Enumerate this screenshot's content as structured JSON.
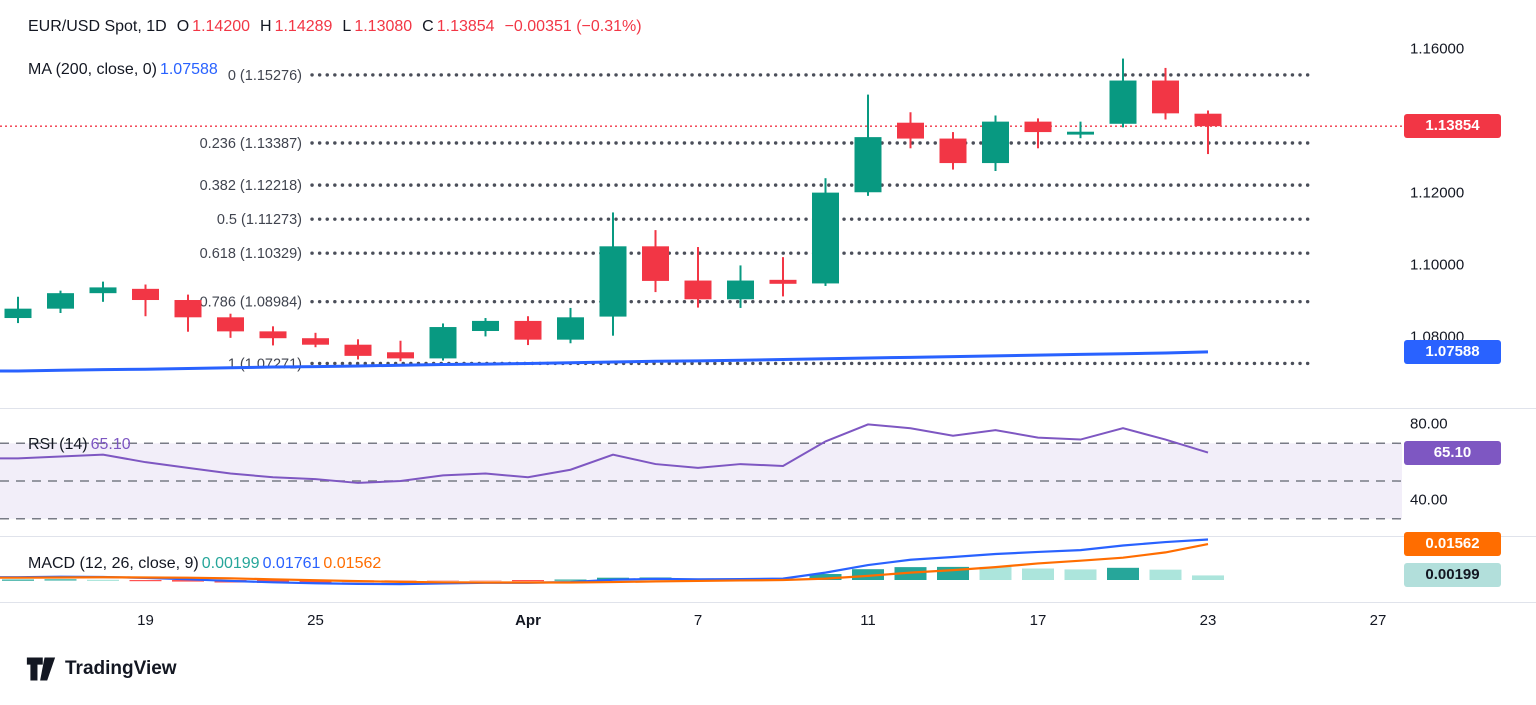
{
  "legend": {
    "title": "EUR/USD Spot, 1D",
    "ohlc": {
      "o_label": "O",
      "open": "1.14200",
      "h_label": "H",
      "high": "1.14289",
      "l_label": "L",
      "low": "1.13080",
      "c_label": "C",
      "close": "1.13854",
      "change": "−0.00351 (−0.31%)"
    },
    "ma_label": "MA (200, close, 0)",
    "ma_value": "1.07588"
  },
  "rsi_legend": {
    "label": "RSI (14)",
    "value": "65.10"
  },
  "macd_legend": {
    "label": "MACD (12, 26, close, 9)",
    "hist_value": "0.00199",
    "macd_value": "0.01761",
    "signal_value": "0.01562"
  },
  "price_axis": {
    "ticks": [
      {
        "label": "1.16000",
        "price": 1.16
      },
      {
        "label": "1.12000",
        "price": 1.12
      },
      {
        "label": "1.10000",
        "price": 1.1
      },
      {
        "label": "1.08000",
        "price": 1.08
      }
    ],
    "badges": [
      {
        "label": "1.13854",
        "price": 1.13854,
        "name": "last-price-badge",
        "color": "#F23645",
        "text": "#ffffff"
      },
      {
        "label": "1.07588",
        "price": 1.07588,
        "name": "ma-value-badge",
        "color": "#2962FF",
        "text": "#ffffff"
      }
    ]
  },
  "rsi_axis": {
    "ticks": [
      {
        "label": "80.00",
        "value": 80
      },
      {
        "label": "40.00",
        "value": 40
      }
    ],
    "badge": {
      "label": "65.10",
      "value": 65.1,
      "color": "#7E57C2",
      "text": "#ffffff"
    }
  },
  "macd_axis": {
    "badges": [
      {
        "label": "0.01562",
        "value": 0.01562,
        "name": "macd-signal-badge",
        "color": "#FF6D00",
        "text": "#ffffff"
      },
      {
        "label": "0.00199",
        "value": 0.00199,
        "name": "macd-hist-badge",
        "color": "#B2DFDB",
        "text": "#131722"
      }
    ]
  },
  "time_axis": {
    "ticks": [
      {
        "label": "19",
        "bar": 3
      },
      {
        "label": "25",
        "bar": 7
      },
      {
        "label": "Apr",
        "bar": 12,
        "bold": true
      },
      {
        "label": "7",
        "bar": 16
      },
      {
        "label": "11",
        "bar": 20
      },
      {
        "label": "17",
        "bar": 24
      },
      {
        "label": "23",
        "bar": 28
      },
      {
        "label": "27",
        "bar": 32
      }
    ]
  },
  "footer": {
    "brand": "TradingView"
  },
  "colors": {
    "up": "#089981",
    "down": "#F23645",
    "ma": "#2962FF",
    "fib": "#4A4E59",
    "fib_text": "#40444F",
    "last_price_line": "#F23645",
    "rsi": "#7E57C2",
    "rsi_band": "rgba(126,87,194,0.10)",
    "guide": "#787B86",
    "macd": "#2962FF",
    "signal": "#FF6D00",
    "hist_up": "#26A69A",
    "hist_up_light": "#ACE5DC",
    "hist_dn": "#FF5252",
    "hist_dn_light": "#FCCBCD",
    "separator": "#E0E3EB",
    "text": "#131722"
  },
  "chart_data": [
    {
      "type": "candlestick",
      "panel": "price",
      "title": "EUR/USD Spot, 1D",
      "ohlc_last": {
        "open": 1.142,
        "high": 1.14289,
        "low": 1.1308,
        "close": 1.13854,
        "change": -0.00351,
        "change_pct": -0.31
      },
      "ylim": [
        1.062,
        1.168
      ],
      "y_axis_ticks": [
        "1.16000",
        "1.12000",
        "1.10000",
        "1.08000"
      ],
      "last_price_line": 1.13854,
      "dates": [
        "2025-03-14",
        "2025-03-17",
        "2025-03-18",
        "2025-03-19",
        "2025-03-20",
        "2025-03-21",
        "2025-03-24",
        "2025-03-25",
        "2025-03-26",
        "2025-03-27",
        "2025-03-28",
        "2025-03-31",
        "2025-04-01",
        "2025-04-02",
        "2025-04-03",
        "2025-04-04",
        "2025-04-07",
        "2025-04-08",
        "2025-04-09",
        "2025-04-10",
        "2025-04-11",
        "2025-04-14",
        "2025-04-15",
        "2025-04-16",
        "2025-04-17",
        "2025-04-18",
        "2025-04-21",
        "2025-04-22",
        "2025-04-23"
      ],
      "candles": [
        [
          1.0853,
          1.0912,
          1.0839,
          1.0879
        ],
        [
          1.0879,
          1.0929,
          1.0867,
          1.0922
        ],
        [
          1.0922,
          1.0954,
          1.0898,
          1.0938
        ],
        [
          1.0934,
          1.0946,
          1.0858,
          1.0903
        ],
        [
          1.0903,
          1.0918,
          1.0815,
          1.0855
        ],
        [
          1.0855,
          1.0865,
          1.0798,
          1.0816
        ],
        [
          1.0816,
          1.083,
          1.0777,
          1.0797
        ],
        [
          1.0797,
          1.0812,
          1.0772,
          1.0779
        ],
        [
          1.0779,
          1.0794,
          1.0738,
          1.0748
        ],
        [
          1.0758,
          1.079,
          1.0733,
          1.0741
        ],
        [
          1.0741,
          1.0838,
          1.0735,
          1.0828
        ],
        [
          1.0817,
          1.0853,
          1.0802,
          1.0845
        ],
        [
          1.0845,
          1.0858,
          1.0778,
          1.0793
        ],
        [
          1.0793,
          1.0881,
          1.0783,
          1.0855
        ],
        [
          1.0857,
          1.1146,
          1.0804,
          1.1052
        ],
        [
          1.1052,
          1.1097,
          1.0925,
          1.0956
        ],
        [
          1.0957,
          1.105,
          1.0882,
          1.0905
        ],
        [
          1.0905,
          1.0999,
          1.0881,
          1.0957
        ],
        [
          1.0959,
          1.1022,
          1.0913,
          1.0948
        ],
        [
          1.0949,
          1.1241,
          1.0942,
          1.1201
        ],
        [
          1.1202,
          1.1473,
          1.1192,
          1.1355
        ],
        [
          1.1395,
          1.1424,
          1.1324,
          1.1351
        ],
        [
          1.1351,
          1.1369,
          1.1265,
          1.1283
        ],
        [
          1.1283,
          1.1415,
          1.1261,
          1.1398
        ],
        [
          1.1398,
          1.1407,
          1.1324,
          1.1369
        ],
        [
          1.1362,
          1.1398,
          1.1352,
          1.137
        ],
        [
          1.1392,
          1.1573,
          1.1382,
          1.1512
        ],
        [
          1.1512,
          1.1547,
          1.1404,
          1.1421
        ],
        [
          1.142,
          1.14289,
          1.1308,
          1.13854
        ]
      ],
      "ma200": [
        1.0706,
        1.0708,
        1.071,
        1.0711,
        1.0713,
        1.0715,
        1.0717,
        1.0718,
        1.072,
        1.0722,
        1.0724,
        1.0725,
        1.0727,
        1.0729,
        1.0731,
        1.0733,
        1.0734,
        1.0736,
        1.0738,
        1.074,
        1.0742,
        1.0744,
        1.0746,
        1.0748,
        1.075,
        1.0752,
        1.0754,
        1.0756,
        1.0759
      ],
      "fib_levels": [
        {
          "level": "0",
          "price": 1.15276,
          "label": "0 (1.15276)"
        },
        {
          "level": "0.236",
          "price": 1.13387,
          "label": "0.236 (1.13387)"
        },
        {
          "level": "0.382",
          "price": 1.12218,
          "label": "0.382 (1.12218)"
        },
        {
          "level": "0.5",
          "price": 1.11273,
          "label": "0.5 (1.11273)"
        },
        {
          "level": "0.618",
          "price": 1.10329,
          "label": "0.618 (1.10329)"
        },
        {
          "level": "0.786",
          "price": 1.08984,
          "label": "0.786 (1.08984)"
        },
        {
          "level": "1",
          "price": 1.07271,
          "label": "1 (1.07271)"
        }
      ]
    },
    {
      "type": "line",
      "panel": "rsi",
      "name": "RSI (14)",
      "last": 65.1,
      "ylim": [
        23,
        85
      ],
      "guides": [
        70,
        50,
        30
      ],
      "band": [
        30,
        70
      ],
      "axis_ticks": [
        80,
        40
      ],
      "values": [
        62,
        63,
        64,
        60,
        57,
        54,
        52,
        51,
        49,
        50,
        53,
        54,
        52,
        56,
        64,
        59,
        57,
        59,
        58,
        71,
        80,
        78,
        74,
        77,
        73,
        72,
        78,
        72,
        65.1
      ]
    },
    {
      "type": "macd",
      "panel": "macd",
      "name": "MACD (12, 26, close, 9)",
      "macd_last": 0.01761,
      "signal_last": 0.01562,
      "hist_last": 0.00199,
      "macd": [
        0.0012,
        0.0014,
        0.0013,
        0.0009,
        0.0003,
        -0.0004,
        -0.001,
        -0.0014,
        -0.0017,
        -0.0018,
        -0.0015,
        -0.0012,
        -0.0012,
        -0.0009,
        0.0001,
        0.0005,
        0.0003,
        0.0004,
        0.0006,
        0.0032,
        0.0065,
        0.0088,
        0.01,
        0.0113,
        0.0122,
        0.013,
        0.015,
        0.0165,
        0.01761
      ],
      "signal": [
        0.001,
        0.0011,
        0.0012,
        0.0011,
        0.001,
        0.0007,
        0.0003,
        -0.0001,
        -0.0005,
        -0.0008,
        -0.001,
        -0.0011,
        -0.0011,
        -0.0011,
        -0.0009,
        -0.0006,
        -0.0004,
        -0.0002,
        0.0,
        0.0006,
        0.0018,
        0.0032,
        0.0043,
        0.0056,
        0.0072,
        0.0084,
        0.0097,
        0.012,
        0.01562
      ]
    }
  ]
}
